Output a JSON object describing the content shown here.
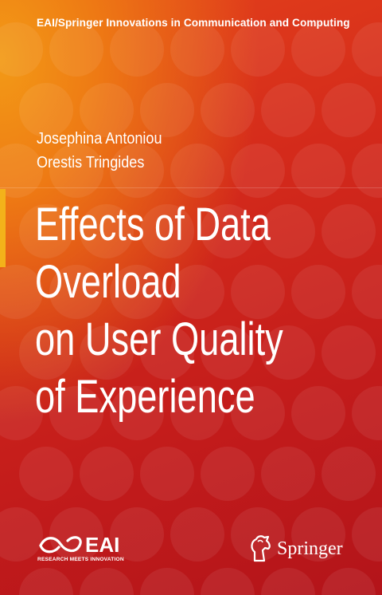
{
  "series": "EAI/Springer Innovations in Communication and Computing",
  "authors": [
    "Josephina Antoniou",
    "Orestis Tringides"
  ],
  "title_lines": [
    "Effects of Data",
    "Overload",
    "on User Quality",
    "of Experience"
  ],
  "eai_logo": {
    "wordmark": "EAI",
    "tagline": "RESEARCH MEETS INNOVATION",
    "icon": "eai-infinity-icon"
  },
  "publisher": {
    "name": "Springer",
    "icon": "springer-horse-icon"
  },
  "colors": {
    "background_red": "#c21b1b",
    "background_orange": "#f39a16",
    "accent_marker": "#f3b21a",
    "text": "#ffffff"
  }
}
